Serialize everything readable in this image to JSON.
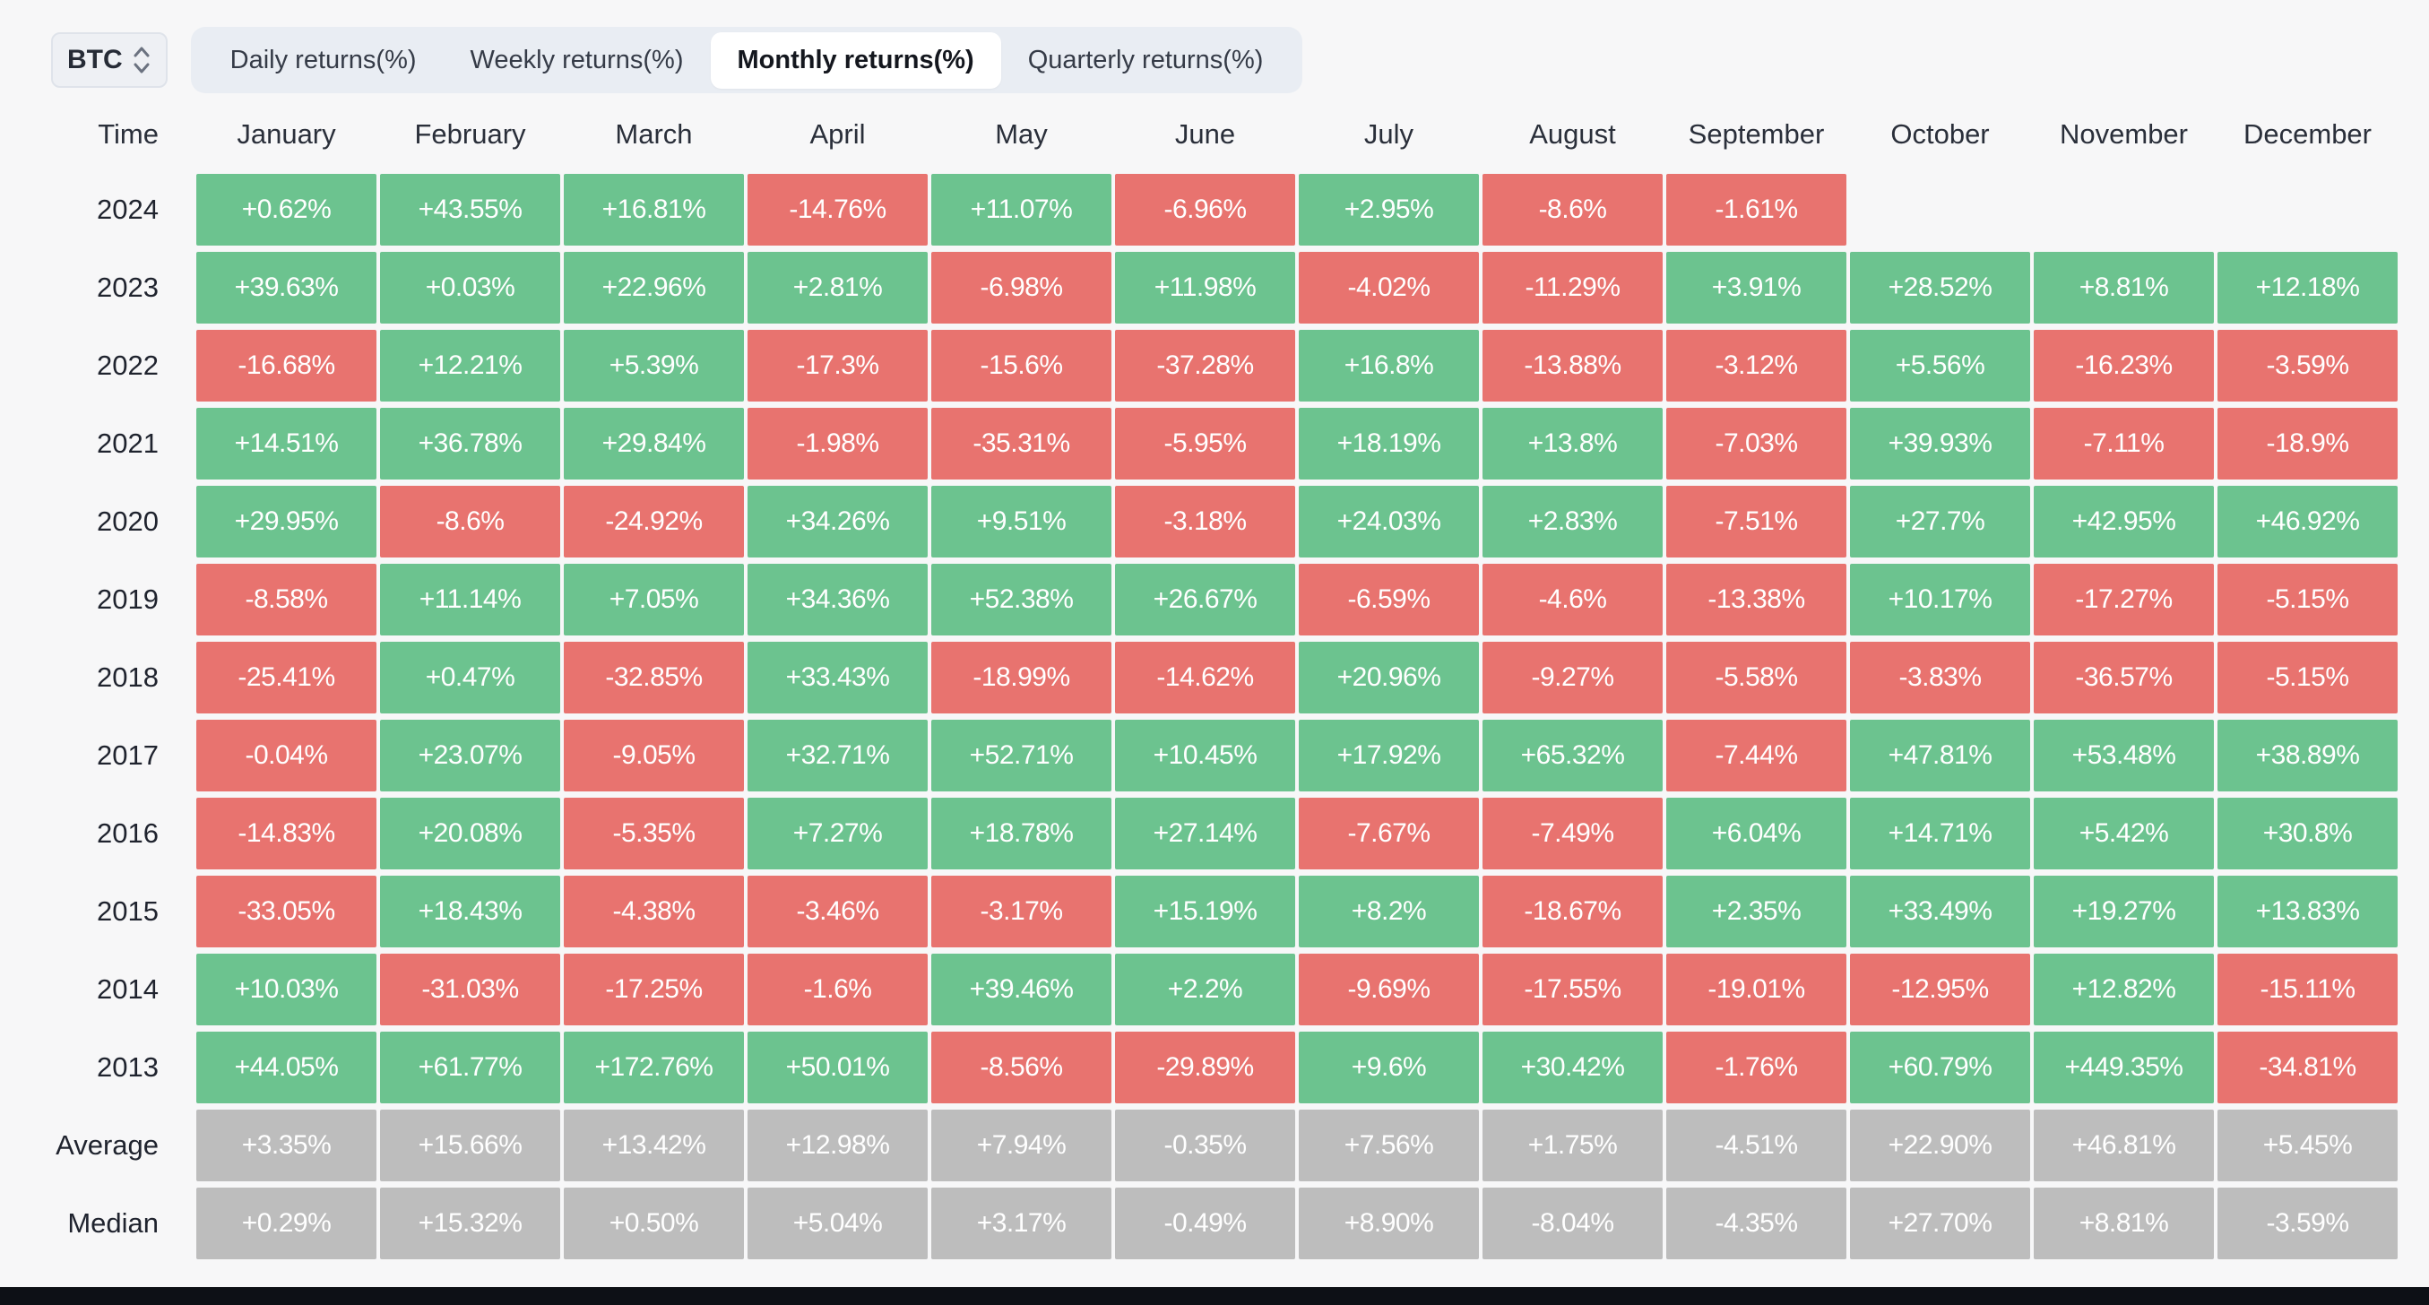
{
  "toolbar": {
    "symbol_selector": {
      "value": "BTC"
    },
    "tabs": [
      {
        "label": "Daily returns(%)",
        "active": false
      },
      {
        "label": "Weekly returns(%)",
        "active": false
      },
      {
        "label": "Monthly returns(%)",
        "active": true
      },
      {
        "label": "Quarterly returns(%)",
        "active": false
      }
    ]
  },
  "table": {
    "time_header": "Time",
    "month_headers": [
      "January",
      "February",
      "March",
      "April",
      "May",
      "June",
      "July",
      "August",
      "September",
      "October",
      "November",
      "December"
    ],
    "rows": [
      {
        "label": "2024",
        "type": "year",
        "values": [
          "+0.62%",
          "+43.55%",
          "+16.81%",
          "-14.76%",
          "+11.07%",
          "-6.96%",
          "+2.95%",
          "-8.6%",
          "-1.61%",
          "",
          "",
          ""
        ]
      },
      {
        "label": "2023",
        "type": "year",
        "values": [
          "+39.63%",
          "+0.03%",
          "+22.96%",
          "+2.81%",
          "-6.98%",
          "+11.98%",
          "-4.02%",
          "-11.29%",
          "+3.91%",
          "+28.52%",
          "+8.81%",
          "+12.18%"
        ]
      },
      {
        "label": "2022",
        "type": "year",
        "values": [
          "-16.68%",
          "+12.21%",
          "+5.39%",
          "-17.3%",
          "-15.6%",
          "-37.28%",
          "+16.8%",
          "-13.88%",
          "-3.12%",
          "+5.56%",
          "-16.23%",
          "-3.59%"
        ]
      },
      {
        "label": "2021",
        "type": "year",
        "values": [
          "+14.51%",
          "+36.78%",
          "+29.84%",
          "-1.98%",
          "-35.31%",
          "-5.95%",
          "+18.19%",
          "+13.8%",
          "-7.03%",
          "+39.93%",
          "-7.11%",
          "-18.9%"
        ]
      },
      {
        "label": "2020",
        "type": "year",
        "values": [
          "+29.95%",
          "-8.6%",
          "-24.92%",
          "+34.26%",
          "+9.51%",
          "-3.18%",
          "+24.03%",
          "+2.83%",
          "-7.51%",
          "+27.7%",
          "+42.95%",
          "+46.92%"
        ]
      },
      {
        "label": "2019",
        "type": "year",
        "values": [
          "-8.58%",
          "+11.14%",
          "+7.05%",
          "+34.36%",
          "+52.38%",
          "+26.67%",
          "-6.59%",
          "-4.6%",
          "-13.38%",
          "+10.17%",
          "-17.27%",
          "-5.15%"
        ]
      },
      {
        "label": "2018",
        "type": "year",
        "values": [
          "-25.41%",
          "+0.47%",
          "-32.85%",
          "+33.43%",
          "-18.99%",
          "-14.62%",
          "+20.96%",
          "-9.27%",
          "-5.58%",
          "-3.83%",
          "-36.57%",
          "-5.15%"
        ]
      },
      {
        "label": "2017",
        "type": "year",
        "values": [
          "-0.04%",
          "+23.07%",
          "-9.05%",
          "+32.71%",
          "+52.71%",
          "+10.45%",
          "+17.92%",
          "+65.32%",
          "-7.44%",
          "+47.81%",
          "+53.48%",
          "+38.89%"
        ]
      },
      {
        "label": "2016",
        "type": "year",
        "values": [
          "-14.83%",
          "+20.08%",
          "-5.35%",
          "+7.27%",
          "+18.78%",
          "+27.14%",
          "-7.67%",
          "-7.49%",
          "+6.04%",
          "+14.71%",
          "+5.42%",
          "+30.8%"
        ]
      },
      {
        "label": "2015",
        "type": "year",
        "values": [
          "-33.05%",
          "+18.43%",
          "-4.38%",
          "-3.46%",
          "-3.17%",
          "+15.19%",
          "+8.2%",
          "-18.67%",
          "+2.35%",
          "+33.49%",
          "+19.27%",
          "+13.83%"
        ]
      },
      {
        "label": "2014",
        "type": "year",
        "values": [
          "+10.03%",
          "-31.03%",
          "-17.25%",
          "-1.6%",
          "+39.46%",
          "+2.2%",
          "-9.69%",
          "-17.55%",
          "-19.01%",
          "-12.95%",
          "+12.82%",
          "-15.11%"
        ]
      },
      {
        "label": "2013",
        "type": "year",
        "values": [
          "+44.05%",
          "+61.77%",
          "+172.76%",
          "+50.01%",
          "-8.56%",
          "-29.89%",
          "+9.6%",
          "+30.42%",
          "-1.76%",
          "+60.79%",
          "+449.35%",
          "-34.81%"
        ]
      },
      {
        "label": "Average",
        "type": "aggregate",
        "values": [
          "+3.35%",
          "+15.66%",
          "+13.42%",
          "+12.98%",
          "+7.94%",
          "-0.35%",
          "+7.56%",
          "+1.75%",
          "-4.51%",
          "+22.90%",
          "+46.81%",
          "+5.45%"
        ]
      },
      {
        "label": "Median",
        "type": "aggregate",
        "values": [
          "+0.29%",
          "+15.32%",
          "+0.50%",
          "+5.04%",
          "+3.17%",
          "-0.49%",
          "+8.90%",
          "-8.04%",
          "-4.35%",
          "+27.70%",
          "+8.81%",
          "-3.59%"
        ]
      }
    ]
  },
  "colors": {
    "positive": "#6cc38f",
    "negative": "#e8736f",
    "aggregate": "#bdbdbd",
    "page_background": "#f7f7f8",
    "tabs_background": "#e9edf3",
    "active_tab_background": "#ffffff",
    "bottom_bar": "#0d1016"
  }
}
